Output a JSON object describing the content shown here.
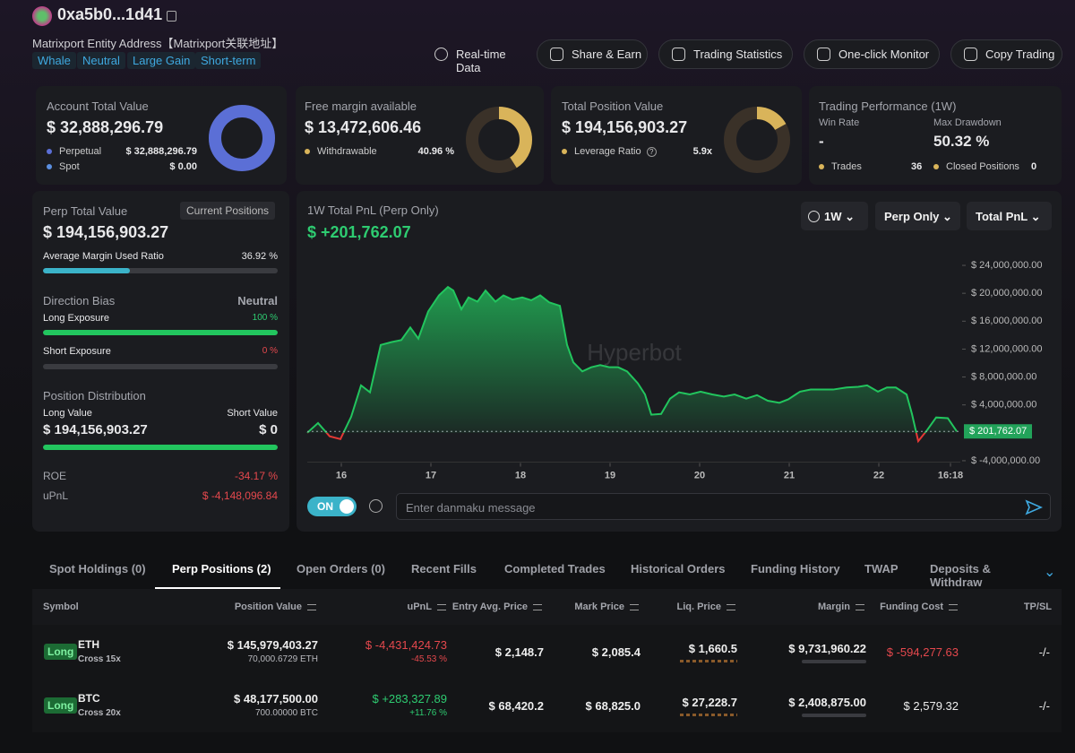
{
  "header": {
    "address": "0xa5b0...1d41",
    "entity": "Matrixport Entity Address【Matrixport关联地址】",
    "tags": [
      "Whale",
      "Neutral",
      "Large Gain",
      "Short-term"
    ],
    "actions": [
      "Real-time Data",
      "Share & Earn",
      "Trading Statistics",
      "One-click Monitor",
      "Copy Trading"
    ]
  },
  "cards": {
    "account": {
      "title": "Account Total Value",
      "value": "$ 32,888,296.79",
      "perpetual": {
        "label": "Perpetual",
        "value": 32888296.79,
        "text": "$ 32,888,296.79"
      },
      "spot": {
        "label": "Spot",
        "value": 0,
        "text": "$ 0.00"
      }
    },
    "margin": {
      "title": "Free margin available",
      "value": "$ 13,472,606.46",
      "withdrawable": {
        "label": "Withdrawable",
        "share": {
          "value": 40.96,
          "label": "40.96 %"
        }
      }
    },
    "position": {
      "title": "Total Position Value",
      "value": "$ 194,156,903.27",
      "leverage": {
        "label": "Leverage Ratio",
        "ratio": {
          "value": 5.9,
          "label": "5.9x"
        }
      }
    },
    "performance": {
      "title": "Trading Performance (1W)",
      "win_rate_label": "Win Rate",
      "win_rate": "-",
      "drawdown_label": "Max Drawdown",
      "drawdown": "50.32 %",
      "trades_label": "Trades",
      "trades": 36,
      "closed_label": "Closed Positions",
      "closed": 0
    }
  },
  "perp": {
    "title": "Perp Total Value",
    "badge": "Current Positions",
    "value": "$ 194,156,903.27",
    "margin_ratio": {
      "label": "Average Margin Used Ratio",
      "value": 36.92,
      "text": "36.92 %"
    },
    "bias_label": "Direction Bias",
    "bias": "Neutral",
    "long": {
      "label": "Long Exposure",
      "value": 100,
      "text": "100 %"
    },
    "short": {
      "label": "Short Exposure",
      "value": 0,
      "text": "0 %"
    },
    "distribution": {
      "title": "Position Distribution",
      "long_label": "Long Value",
      "short_label": "Short Value",
      "long_value": "$ 194,156,903.27",
      "short_value": "$ 0"
    },
    "roe_label": "ROE",
    "roe": "-34.17 %",
    "upnl_label": "uPnL",
    "upnl": "$ -4,148,096.84"
  },
  "chart_data": {
    "type": "line",
    "title": "1W Total PnL (Perp Only)",
    "headline": "$ +201,762.07",
    "watermark": "Hyperbot",
    "controls": [
      "1W",
      "Perp Only",
      "Total PnL"
    ],
    "color": "#22c55e",
    "negative_color": "#e53935",
    "x": [
      15.62,
      15.74,
      15.87,
      15.99,
      16.11,
      16.22,
      16.32,
      16.44,
      16.56,
      16.67,
      16.77,
      16.86,
      16.97,
      17.09,
      17.19,
      17.25,
      17.34,
      17.42,
      17.52,
      17.61,
      17.72,
      17.81,
      17.91,
      18.02,
      18.12,
      18.22,
      18.32,
      18.44,
      18.52,
      18.59,
      18.69,
      18.79,
      18.89,
      18.99,
      19.09,
      19.19,
      19.31,
      19.39,
      19.46,
      19.57,
      19.67,
      19.77,
      19.89,
      20.01,
      20.14,
      20.27,
      20.39,
      20.52,
      20.64,
      20.76,
      20.89,
      20.99,
      21.12,
      21.24,
      21.37,
      21.49,
      21.64,
      21.77,
      21.87,
      21.99,
      22.09,
      22.19,
      22.31,
      22.37,
      22.44,
      22.54,
      22.64,
      22.77,
      22.87
    ],
    "values": [
      0,
      1400000,
      -500000,
      -900000,
      2300000,
      6800000,
      5800000,
      12600000,
      13000000,
      13300000,
      15100000,
      13500000,
      17400000,
      19700000,
      20900000,
      20400000,
      17700000,
      19400000,
      18800000,
      20400000,
      18800000,
      19700000,
      19100000,
      19400000,
      19000000,
      19700000,
      18700000,
      18200000,
      12600000,
      10100000,
      8800000,
      9400000,
      9700000,
      9400000,
      9400000,
      8800000,
      7100000,
      5500000,
      2600000,
      2700000,
      4900000,
      5800000,
      5500000,
      5900000,
      5500000,
      5200000,
      5500000,
      4900000,
      5400000,
      4600000,
      4300000,
      4800000,
      5900000,
      6200000,
      6200000,
      6200000,
      6500000,
      6600000,
      6800000,
      5900000,
      6500000,
      6500000,
      5500000,
      2700000,
      -1200000,
      400000,
      2200000,
      2100000,
      201762.07
    ],
    "xlim": [
      15.62,
      22.91
    ],
    "xticks": [
      16,
      17,
      18,
      19,
      20,
      21,
      22,
      {
        "value": 22.8,
        "label": "16:18"
      }
    ],
    "ylim": [
      -4200000,
      25000000
    ],
    "yticks": [
      {
        "value": 24000000,
        "label": "$ 24,000,000.00"
      },
      {
        "value": 20000000,
        "label": "$ 20,000,000.00"
      },
      {
        "value": 16000000,
        "label": "$ 16,000,000.00"
      },
      {
        "value": 12000000,
        "label": "$ 12,000,000.00"
      },
      {
        "value": 8000000,
        "label": "$ 8,000,000.00"
      },
      {
        "value": 4000000,
        "label": "$ 4,000,000.00"
      },
      {
        "value": -4000000,
        "label": "$ -4,000,000.00"
      }
    ],
    "current": {
      "value": 201762.07,
      "label": "$ 201,762.07"
    }
  },
  "danmaku": {
    "toggle": "ON",
    "placeholder": "Enter danmaku message"
  },
  "tabs": {
    "items": [
      "Spot Holdings (0)",
      "Perp Positions (2)",
      "Open Orders (0)",
      "Recent Fills",
      "Completed Trades",
      "Historical Orders",
      "Funding History",
      "TWAP",
      "Deposits & Withdraw"
    ],
    "active": 1
  },
  "table": {
    "columns": [
      "Symbol",
      "Position Value",
      "uPnL",
      "Entry Avg. Price",
      "Mark Price",
      "Liq. Price",
      "Margin",
      "Funding Cost",
      "TP/SL"
    ],
    "rows": [
      {
        "side": "Long",
        "symbol": "ETH",
        "leverage": "Cross 15x",
        "value": "$ 145,979,403.27",
        "size": "70,000.6729 ETH",
        "upnl": "$ -4,431,424.73",
        "upnl_pct": "-45.53 %",
        "entry": "$ 2,148.7",
        "mark": "$ 2,085.4",
        "liq": "$ 1,660.5",
        "margin": "$ 9,731,960.22",
        "funding": "$ -594,277.63",
        "tpsl": "-/-"
      },
      {
        "side": "Long",
        "symbol": "BTC",
        "leverage": "Cross 20x",
        "value": "$ 48,177,500.00",
        "size": "700.00000 BTC",
        "upnl": "$ +283,327.89",
        "upnl_pct": "+11.76 %",
        "entry": "$ 68,420.2",
        "mark": "$ 68,825.0",
        "liq": "$ 27,228.7",
        "margin": "$ 2,408,875.00",
        "funding": "$ 2,579.32",
        "tpsl": "-/-"
      }
    ]
  }
}
